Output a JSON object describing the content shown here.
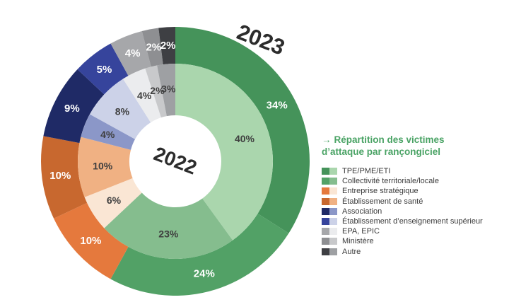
{
  "years": {
    "outer": "2023",
    "inner": "2022"
  },
  "title": {
    "arrow": "→",
    "lines": [
      "Répartition des victimes",
      "d’attaque par rançongiciel"
    ],
    "color": "#4aa365"
  },
  "chart_data": {
    "type": "pie",
    "subtype": "nested_donut",
    "unit": "%",
    "direction": "clockwise",
    "start_angle_deg": 0,
    "categories": [
      "TPE/PME/ETI",
      "Collectivité territoriale/locale",
      "Entreprise stratégique",
      "Établissement de santé",
      "Association",
      "Établissement d’enseignement supérieur",
      "EPA, EPIC",
      "Ministère",
      "Autre"
    ],
    "series": [
      {
        "name": "2023",
        "ring": "outer",
        "values": [
          34,
          24,
          10,
          10,
          9,
          5,
          4,
          2,
          2
        ],
        "colors": [
          "#45935a",
          "#52a166",
          "#e5793d",
          "#c8682f",
          "#1f2a66",
          "#36449c",
          "#a6a7aa",
          "#8e8f92",
          "#3e3f43"
        ],
        "label_color": "#ffffff"
      },
      {
        "name": "2022",
        "ring": "inner",
        "values": [
          40,
          23,
          6,
          10,
          4,
          8,
          4,
          2,
          3
        ],
        "colors": [
          "#aad6ad",
          "#85bd8e",
          "#fae6d4",
          "#f0b183",
          "#8b97c8",
          "#ccd2e8",
          "#ebecee",
          "#c8c9cb",
          "#9ea0a3"
        ],
        "label_color": "#3f3f3f"
      }
    ],
    "legend_position": "right"
  }
}
